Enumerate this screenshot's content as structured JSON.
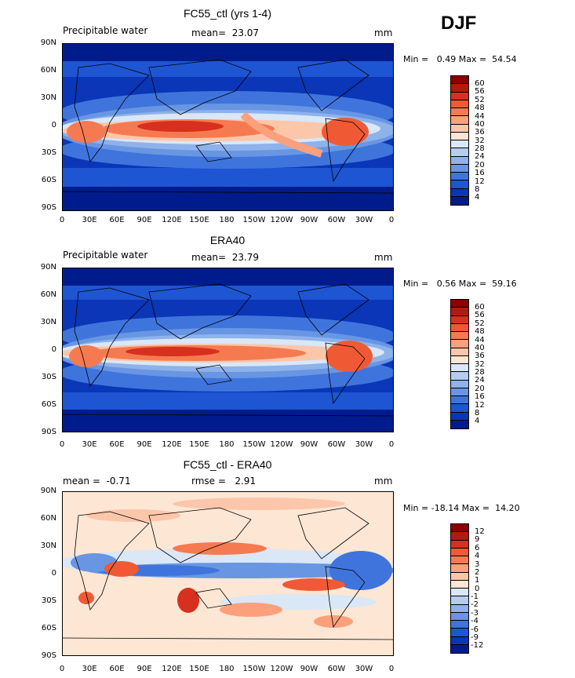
{
  "season": "DJF",
  "panels": [
    {
      "id": "model",
      "title": "FC55_ctl (yrs 1-4)",
      "left_text": "Precipitable water",
      "mid_text": "mean=  23.07",
      "unit": "mm",
      "minmax": "Min =   0.49 Max =  54.54",
      "colorbar_labels": [
        "60",
        "56",
        "52",
        "48",
        "44",
        "40",
        "36",
        "32",
        "28",
        "24",
        "20",
        "16",
        "12",
        "8",
        "4"
      ],
      "colors": [
        "#8b0000",
        "#b41a0c",
        "#d7301f",
        "#ef5a35",
        "#f67a51",
        "#fba07b",
        "#fcc6aa",
        "#fde6d4",
        "#d9e7f7",
        "#b4cdf0",
        "#8eb2ea",
        "#6896e3",
        "#3f74dc",
        "#1e55d2",
        "#0a36b7",
        "#001c8c"
      ]
    },
    {
      "id": "obs",
      "title": "ERA40",
      "left_text": "Precipitable water",
      "mid_text": "mean=  23.79",
      "unit": "mm",
      "minmax": "Min =   0.56 Max =  59.16",
      "colorbar_labels": [
        "60",
        "56",
        "52",
        "48",
        "44",
        "40",
        "36",
        "32",
        "28",
        "24",
        "20",
        "16",
        "12",
        "8",
        "4"
      ],
      "colors": [
        "#8b0000",
        "#b41a0c",
        "#d7301f",
        "#ef5a35",
        "#f67a51",
        "#fba07b",
        "#fcc6aa",
        "#fde6d4",
        "#d9e7f7",
        "#b4cdf0",
        "#8eb2ea",
        "#6896e3",
        "#3f74dc",
        "#1e55d2",
        "#0a36b7",
        "#001c8c"
      ]
    },
    {
      "id": "diff",
      "title": "FC55_ctl - ERA40",
      "left_text": "mean =  -0.71",
      "mid_text": "rmse =   2.91",
      "unit": "mm",
      "minmax": "Min = -18.14 Max =  14.20",
      "colorbar_labels": [
        "12",
        "9",
        "6",
        "4",
        "3",
        "2",
        "1",
        "0",
        "-1",
        "-2",
        "-3",
        "-4",
        "-6",
        "-9",
        "-12"
      ],
      "colors": [
        "#8b0000",
        "#b41a0c",
        "#d7301f",
        "#ef5a35",
        "#f67a51",
        "#fba07b",
        "#fcc6aa",
        "#fde6d4",
        "#d9e7f7",
        "#b4cdf0",
        "#8eb2ea",
        "#6896e3",
        "#3f74dc",
        "#1e55d2",
        "#0a36b7",
        "#001c8c"
      ]
    }
  ],
  "lat_labels": [
    "90N",
    "60N",
    "30N",
    "0",
    "30S",
    "60S",
    "90S"
  ],
  "lon_labels": [
    "0",
    "30E",
    "60E",
    "90E",
    "120E",
    "150E",
    "180",
    "150W",
    "120W",
    "90W",
    "60W",
    "30W",
    "0"
  ]
}
